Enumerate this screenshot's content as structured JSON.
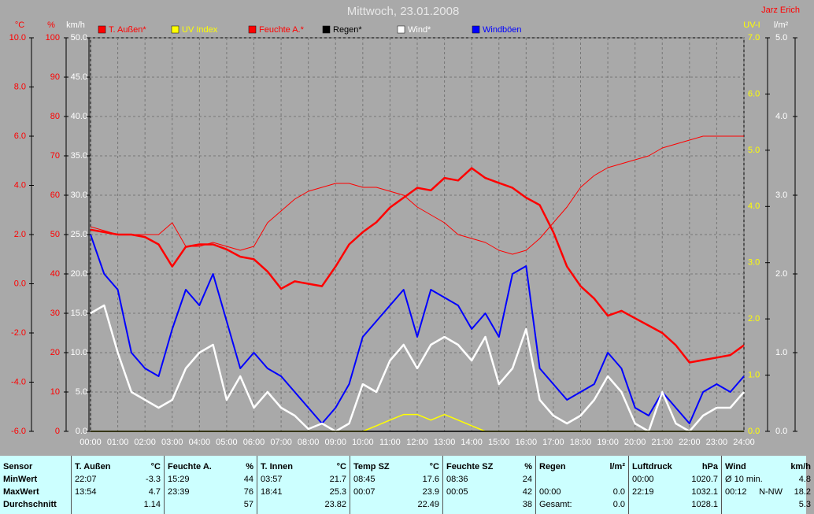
{
  "chart_data": {
    "type": "line",
    "title": "Mittwoch, 23.01.2008",
    "author": "Jarz Erich",
    "grid": true,
    "xlim": [
      0,
      24
    ],
    "xticks": [
      {
        "value": 0,
        "label": "00:00"
      },
      {
        "value": 1,
        "label": "01:00"
      },
      {
        "value": 2,
        "label": "02:00"
      },
      {
        "value": 3,
        "label": "03:00"
      },
      {
        "value": 4,
        "label": "04:00"
      },
      {
        "value": 5,
        "label": "05:00"
      },
      {
        "value": 6,
        "label": "06:00"
      },
      {
        "value": 7,
        "label": "07:00"
      },
      {
        "value": 8,
        "label": "08:00"
      },
      {
        "value": 9,
        "label": "09:00"
      },
      {
        "value": 10,
        "label": "10:00"
      },
      {
        "value": 11,
        "label": "11:00"
      },
      {
        "value": 12,
        "label": "12:00"
      },
      {
        "value": 13,
        "label": "13:00"
      },
      {
        "value": 14,
        "label": "14:00"
      },
      {
        "value": 15,
        "label": "15:00"
      },
      {
        "value": 16,
        "label": "16:00"
      },
      {
        "value": 17,
        "label": "17:00"
      },
      {
        "value": 18,
        "label": "18:00"
      },
      {
        "value": 19,
        "label": "19:00"
      },
      {
        "value": 20,
        "label": "20:00"
      },
      {
        "value": 21,
        "label": "21:00"
      },
      {
        "value": 22,
        "label": "22:00"
      },
      {
        "value": 23,
        "label": "23:00"
      },
      {
        "value": 24,
        "label": "24:00"
      }
    ],
    "axes": [
      {
        "label": "°C",
        "color": "#ff0000",
        "lim": [
          -6,
          10
        ],
        "ticks": [
          {
            "value": -6,
            "label": "-6.0"
          },
          {
            "value": -4,
            "label": "-4.0"
          },
          {
            "value": -2,
            "label": "-2.0"
          },
          {
            "value": 0,
            "label": "0.0"
          },
          {
            "value": 2,
            "label": "2.0"
          },
          {
            "value": 4,
            "label": "4.0"
          },
          {
            "value": 6,
            "label": "6.0"
          },
          {
            "value": 8,
            "label": "8.0"
          },
          {
            "value": 10,
            "label": "10.0"
          }
        ]
      },
      {
        "label": "%",
        "color": "#ff0000",
        "lim": [
          0,
          100
        ],
        "ticks": [
          0,
          10,
          20,
          30,
          40,
          50,
          60,
          70,
          80,
          90,
          100
        ]
      },
      {
        "label": "km/h",
        "color": "#ffffff",
        "lim": [
          0,
          50
        ],
        "ticks": [
          {
            "value": 0,
            "label": "0.0"
          },
          {
            "value": 5,
            "label": "5.0"
          },
          {
            "value": 10,
            "label": "10.0"
          },
          {
            "value": 15,
            "label": "15.0"
          },
          {
            "value": 20,
            "label": "20.0"
          },
          {
            "value": 25,
            "label": "25.0"
          },
          {
            "value": 30,
            "label": "30.0"
          },
          {
            "value": 35,
            "label": "35.0"
          },
          {
            "value": 40,
            "label": "40.0"
          },
          {
            "value": 45,
            "label": "45.0"
          },
          {
            "value": 50,
            "label": "50.0"
          }
        ]
      },
      {
        "label": "UV-I",
        "color": "#ffff00",
        "lim": [
          0,
          7
        ],
        "ticks": [
          {
            "value": 0,
            "label": "0.0"
          },
          {
            "value": 1,
            "label": "1.0"
          },
          {
            "value": 2,
            "label": "2.0"
          },
          {
            "value": 3,
            "label": "3.0"
          },
          {
            "value": 4,
            "label": "4.0"
          },
          {
            "value": 5,
            "label": "5.0"
          },
          {
            "value": 6,
            "label": "6.0"
          },
          {
            "value": 7,
            "label": "7.0"
          }
        ]
      },
      {
        "label": "l/m²",
        "color": "#ffffff",
        "lim": [
          0,
          5
        ],
        "ticks": [
          {
            "value": 0,
            "label": "0.0"
          },
          {
            "value": 1,
            "label": "1.0"
          },
          {
            "value": 2,
            "label": "2.0"
          },
          {
            "value": 3,
            "label": "3.0"
          },
          {
            "value": 4,
            "label": "4.0"
          },
          {
            "value": 5,
            "label": "5.0"
          }
        ]
      }
    ],
    "x": [
      0,
      0.5,
      1,
      1.5,
      2,
      2.5,
      3,
      3.5,
      4,
      4.5,
      5,
      5.5,
      6,
      6.5,
      7,
      7.5,
      8,
      8.5,
      9,
      9.5,
      10,
      10.5,
      11,
      11.5,
      12,
      12.5,
      13,
      13.5,
      14,
      14.5,
      15,
      15.5,
      16,
      16.5,
      17,
      17.5,
      18,
      18.5,
      19,
      19.5,
      20,
      20.5,
      21,
      21.5,
      22,
      22.5,
      23,
      23.5,
      24
    ],
    "series": [
      {
        "name": "T. Außen*",
        "color": "#ff0000",
        "axis": "°C",
        "width": 2.5,
        "values": [
          2.2,
          2.1,
          2.0,
          2.0,
          1.9,
          1.6,
          0.7,
          1.5,
          1.6,
          1.6,
          1.4,
          1.1,
          1.0,
          0.5,
          -0.2,
          0.1,
          0.0,
          -0.1,
          0.7,
          1.6,
          2.1,
          2.5,
          3.1,
          3.5,
          3.9,
          3.8,
          4.3,
          4.2,
          4.7,
          4.3,
          4.1,
          3.9,
          3.5,
          3.2,
          2.1,
          0.7,
          -0.1,
          -0.6,
          -1.3,
          -1.1,
          -1.4,
          -1.7,
          -2.0,
          -2.5,
          -3.2,
          -3.1,
          -3.0,
          -2.9,
          -2.5
        ]
      },
      {
        "name": "UV Index",
        "color": "#ffff00",
        "axis": "UV-I",
        "width": 1.5,
        "values": [
          0,
          0,
          0,
          0,
          0,
          0,
          0,
          0,
          0,
          0,
          0,
          0,
          0,
          0,
          0,
          0,
          0,
          0,
          0,
          0,
          0,
          0.1,
          0.2,
          0.3,
          0.3,
          0.2,
          0.3,
          0.2,
          0.1,
          0,
          0,
          0,
          0,
          0,
          0,
          0,
          0,
          0,
          0,
          0,
          0,
          0,
          0,
          0,
          0,
          0,
          0,
          0,
          0
        ]
      },
      {
        "name": "Feuchte A.*",
        "color": "#ff0000",
        "axis": "%",
        "width": 1,
        "values": [
          52,
          51,
          50,
          50,
          50,
          50,
          53,
          47,
          47,
          48,
          47,
          46,
          47,
          53,
          56,
          59,
          61,
          62,
          63,
          63,
          62,
          62,
          61,
          60,
          57,
          55,
          53,
          50,
          49,
          48,
          46,
          45,
          46,
          49,
          53,
          57,
          62,
          65,
          67,
          68,
          69,
          70,
          72,
          73,
          74,
          75,
          75,
          75,
          75
        ]
      },
      {
        "name": "Regen*",
        "color": "#000000",
        "axis": "l/m²",
        "width": 1.5,
        "values": [
          0,
          0,
          0,
          0,
          0,
          0,
          0,
          0,
          0,
          0,
          0,
          0,
          0,
          0,
          0,
          0,
          0,
          0,
          0,
          0,
          0,
          0,
          0,
          0,
          0,
          0,
          0,
          0,
          0,
          0,
          0,
          0,
          0,
          0,
          0,
          0,
          0,
          0,
          0,
          0,
          0,
          0,
          0,
          0,
          0,
          0,
          0,
          0,
          0
        ]
      },
      {
        "name": "Wind*",
        "color": "#ffffff",
        "axis": "km/h",
        "width": 2.5,
        "values": [
          15,
          16,
          10,
          5,
          4,
          3,
          4,
          8,
          10,
          11,
          4,
          7,
          3,
          5,
          3,
          2,
          0.3,
          1,
          0,
          1,
          6,
          5,
          9,
          11,
          8,
          11,
          12,
          11,
          9,
          12,
          6,
          8,
          13,
          4,
          2,
          1,
          2,
          4,
          7,
          5,
          1,
          0,
          5,
          1,
          0,
          2,
          3,
          3,
          5
        ]
      },
      {
        "name": "Windböen",
        "color": "#0000ff",
        "axis": "km/h",
        "width": 2,
        "values": [
          25,
          20,
          18,
          10,
          8,
          7,
          13,
          18,
          16,
          20,
          14,
          8,
          10,
          8,
          7,
          5,
          3,
          1,
          3,
          6,
          12,
          14,
          16,
          18,
          12,
          18,
          17,
          16,
          13,
          15,
          12,
          20,
          21,
          8,
          6,
          4,
          5,
          6,
          10,
          8,
          3,
          2,
          5,
          3,
          1,
          5,
          6,
          5,
          7
        ]
      }
    ]
  },
  "stats": {
    "row_labels": [
      "Sensor",
      "MinWert",
      "MaxWert",
      "Durchschnitt"
    ],
    "columns": [
      {
        "name": "T. Außen",
        "unit": "°C",
        "cells": [
          [
            "22:07",
            "-3.3"
          ],
          [
            "13:54",
            "4.7"
          ],
          [
            "1.14"
          ]
        ]
      },
      {
        "name": "Feuchte A.",
        "unit": "%",
        "cells": [
          [
            "15:29",
            "44"
          ],
          [
            "23:39",
            "76"
          ],
          [
            "57"
          ]
        ]
      },
      {
        "name": "T. Innen",
        "unit": "°C",
        "cells": [
          [
            "03:57",
            "21.7"
          ],
          [
            "18:41",
            "25.3"
          ],
          [
            "23.82"
          ]
        ]
      },
      {
        "name": "Temp SZ",
        "unit": "°C",
        "cells": [
          [
            "08:45",
            "17.6"
          ],
          [
            "00:07",
            "23.9"
          ],
          [
            "22.49"
          ]
        ]
      },
      {
        "name": "Feuchte SZ",
        "unit": "%",
        "cells": [
          [
            "08:36",
            "24"
          ],
          [
            "00:05",
            "42"
          ],
          [
            "38"
          ]
        ]
      },
      {
        "name": "Regen",
        "unit": "l/m²",
        "cells": [
          null,
          [
            "00:00",
            "0.0"
          ],
          [
            "Gesamt:",
            "0.0"
          ]
        ]
      },
      {
        "name": "Luftdruck",
        "unit": "hPa",
        "cells": [
          [
            "00:00",
            "1020.7"
          ],
          [
            "22:19",
            "1032.1"
          ],
          [
            "1028.1"
          ]
        ]
      },
      {
        "name": "Wind",
        "unit": "km/h",
        "cells": [
          [
            "Ø 10 min.",
            "4.8"
          ],
          [
            "00:12",
            "N-NW",
            "18.2"
          ],
          [
            "5.3"
          ]
        ]
      }
    ]
  }
}
